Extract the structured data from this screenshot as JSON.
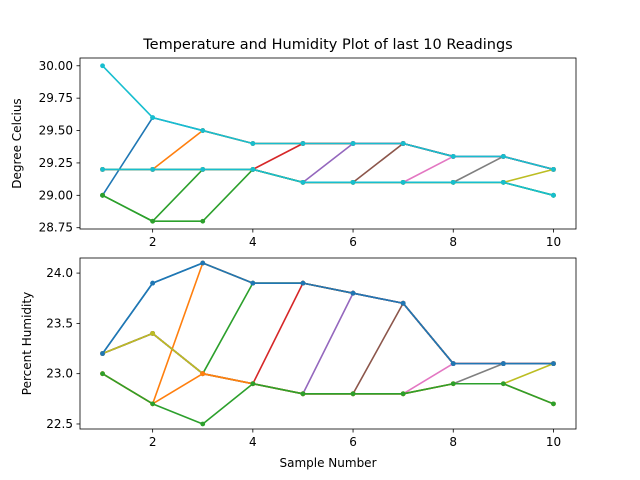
{
  "chart_data": [
    {
      "type": "line",
      "title": "Temperature and Humidity Plot of last 10 Readings",
      "xlabel": "",
      "ylabel": "Degree Celcius",
      "xlim": [
        0.55,
        10.45
      ],
      "ylim": [
        28.74,
        30.06
      ],
      "xticks": [
        2,
        4,
        6,
        8,
        10
      ],
      "yticks": [
        28.75,
        29.0,
        29.25,
        29.5,
        29.75,
        30.0
      ],
      "ytick_labels": [
        "28.75",
        "29.00",
        "29.25",
        "29.50",
        "29.75",
        "30.00"
      ],
      "grid": false,
      "series": [
        {
          "color": "#1f77b4",
          "x": [
            1,
            2,
            3,
            4,
            5,
            6,
            7,
            8,
            9,
            10
          ],
          "values": [
            29.0,
            29.6,
            29.5,
            29.4,
            29.4,
            29.4,
            29.4,
            29.3,
            29.3,
            29.2
          ]
        },
        {
          "color": "#ff7f0e",
          "x": [
            1,
            2,
            3,
            4,
            5,
            6,
            7,
            8,
            9,
            10
          ],
          "values": [
            29.2,
            29.2,
            29.5,
            29.4,
            29.4,
            29.4,
            29.4,
            29.3,
            29.3,
            29.2
          ]
        },
        {
          "color": "#2ca02c",
          "x": [
            1,
            2,
            3,
            4,
            5,
            6,
            7,
            8,
            9,
            10
          ],
          "values": [
            29.0,
            28.8,
            29.2,
            29.2,
            29.1,
            29.1,
            29.1,
            29.1,
            29.1,
            29.0
          ]
        },
        {
          "color": "#d62728",
          "x": [
            1,
            2,
            3,
            4,
            5,
            6,
            7,
            8,
            9,
            10
          ],
          "values": [
            29.2,
            29.2,
            29.2,
            29.2,
            29.4,
            29.4,
            29.4,
            29.3,
            29.3,
            29.2
          ]
        },
        {
          "color": "#9467bd",
          "x": [
            1,
            2,
            3,
            4,
            5,
            6,
            7,
            8,
            9,
            10
          ],
          "values": [
            29.2,
            29.2,
            29.2,
            29.2,
            29.1,
            29.4,
            29.4,
            29.3,
            29.3,
            29.2
          ]
        },
        {
          "color": "#8c564b",
          "x": [
            1,
            2,
            3,
            4,
            5,
            6,
            7,
            8,
            9,
            10
          ],
          "values": [
            29.2,
            29.2,
            29.2,
            29.2,
            29.1,
            29.1,
            29.4,
            29.3,
            29.3,
            29.2
          ]
        },
        {
          "color": "#e377c2",
          "x": [
            1,
            2,
            3,
            4,
            5,
            6,
            7,
            8,
            9,
            10
          ],
          "values": [
            29.2,
            29.2,
            29.2,
            29.2,
            29.1,
            29.1,
            29.1,
            29.3,
            29.3,
            29.2
          ]
        },
        {
          "color": "#7f7f7f",
          "x": [
            1,
            2,
            3,
            4,
            5,
            6,
            7,
            8,
            9,
            10
          ],
          "values": [
            29.2,
            29.2,
            29.2,
            29.2,
            29.1,
            29.1,
            29.1,
            29.1,
            29.3,
            29.2
          ]
        },
        {
          "color": "#bcbd22",
          "x": [
            1,
            2,
            3,
            4,
            5,
            6,
            7,
            8,
            9,
            10
          ],
          "values": [
            29.2,
            29.2,
            29.2,
            29.2,
            29.1,
            29.1,
            29.1,
            29.1,
            29.1,
            29.2
          ]
        },
        {
          "color": "#17becf",
          "x": [
            1,
            2,
            3,
            4,
            5,
            6,
            7,
            8,
            9,
            10
          ],
          "values": [
            30.0,
            29.6,
            29.5,
            29.4,
            29.4,
            29.4,
            29.4,
            29.3,
            29.3,
            29.2
          ]
        },
        {
          "color": "#2ca02c",
          "x": [
            1,
            2,
            3,
            4,
            5,
            6,
            7,
            8,
            9,
            10
          ],
          "values": [
            29.0,
            28.8,
            28.8,
            29.2,
            29.1,
            29.1,
            29.1,
            29.1,
            29.1,
            29.0
          ]
        },
        {
          "color": "#17becf",
          "x": [
            1,
            2,
            3,
            4,
            5,
            6,
            7,
            8,
            9,
            10
          ],
          "values": [
            29.2,
            29.2,
            29.2,
            29.2,
            29.1,
            29.1,
            29.1,
            29.1,
            29.1,
            29.0
          ]
        }
      ]
    },
    {
      "type": "line",
      "title": "",
      "xlabel": "Sample Number",
      "ylabel": "Percent Humidity",
      "xlim": [
        0.55,
        10.45
      ],
      "ylim": [
        22.45,
        24.15
      ],
      "xticks": [
        2,
        4,
        6,
        8,
        10
      ],
      "yticks": [
        22.5,
        23.0,
        23.5,
        24.0
      ],
      "ytick_labels": [
        "22.5",
        "23.0",
        "23.5",
        "24.0"
      ],
      "grid": false,
      "series": [
        {
          "color": "#1f77b4",
          "x": [
            1,
            2,
            3,
            4,
            5,
            6,
            7,
            8,
            9,
            10
          ],
          "values": [
            23.2,
            23.9,
            24.1,
            23.9,
            23.9,
            23.8,
            23.7,
            23.1,
            23.1,
            23.1
          ]
        },
        {
          "color": "#ff7f0e",
          "x": [
            1,
            2,
            3,
            4,
            5,
            6,
            7,
            8,
            9,
            10
          ],
          "values": [
            23.0,
            22.7,
            24.1,
            23.9,
            23.9,
            23.8,
            23.7,
            23.1,
            23.1,
            23.1
          ]
        },
        {
          "color": "#2ca02c",
          "x": [
            1,
            2,
            3,
            4,
            5,
            6,
            7,
            8,
            9,
            10
          ],
          "values": [
            23.2,
            23.4,
            23.0,
            23.9,
            23.9,
            23.8,
            23.7,
            23.1,
            23.1,
            23.1
          ]
        },
        {
          "color": "#d62728",
          "x": [
            1,
            2,
            3,
            4,
            5,
            6,
            7,
            8,
            9,
            10
          ],
          "values": [
            23.2,
            23.4,
            23.0,
            22.9,
            23.9,
            23.8,
            23.7,
            23.1,
            23.1,
            23.1
          ]
        },
        {
          "color": "#9467bd",
          "x": [
            1,
            2,
            3,
            4,
            5,
            6,
            7,
            8,
            9,
            10
          ],
          "values": [
            23.2,
            23.4,
            23.0,
            22.9,
            22.8,
            23.8,
            23.7,
            23.1,
            23.1,
            23.1
          ]
        },
        {
          "color": "#8c564b",
          "x": [
            1,
            2,
            3,
            4,
            5,
            6,
            7,
            8,
            9,
            10
          ],
          "values": [
            23.2,
            23.4,
            23.0,
            22.9,
            22.8,
            22.8,
            23.7,
            23.1,
            23.1,
            23.1
          ]
        },
        {
          "color": "#e377c2",
          "x": [
            1,
            2,
            3,
            4,
            5,
            6,
            7,
            8,
            9,
            10
          ],
          "values": [
            23.2,
            23.4,
            23.0,
            22.9,
            22.8,
            22.8,
            22.8,
            23.1,
            23.1,
            23.1
          ]
        },
        {
          "color": "#7f7f7f",
          "x": [
            1,
            2,
            3,
            4,
            5,
            6,
            7,
            8,
            9,
            10
          ],
          "values": [
            23.2,
            23.4,
            23.0,
            22.9,
            22.8,
            22.8,
            22.8,
            22.9,
            23.1,
            23.1
          ]
        },
        {
          "color": "#bcbd22",
          "x": [
            1,
            2,
            3,
            4,
            5,
            6,
            7,
            8,
            9,
            10
          ],
          "values": [
            23.2,
            23.4,
            23.0,
            22.9,
            22.8,
            22.8,
            22.8,
            22.9,
            22.9,
            23.1
          ]
        },
        {
          "color": "#1f77b4",
          "x": [
            1,
            2,
            3,
            4,
            5,
            6,
            7,
            8,
            9,
            10
          ],
          "values": [
            23.2,
            23.9,
            24.1,
            23.9,
            23.9,
            23.8,
            23.7,
            23.1,
            23.1,
            23.1
          ]
        },
        {
          "color": "#ff7f0e",
          "x": [
            1,
            2,
            3,
            4,
            5,
            6,
            7,
            8,
            9,
            10
          ],
          "values": [
            23.0,
            22.7,
            23.0,
            22.9,
            22.8,
            22.8,
            22.8,
            22.9,
            22.9,
            22.7
          ]
        },
        {
          "color": "#2ca02c",
          "x": [
            1,
            2,
            3,
            4,
            5,
            6,
            7,
            8,
            9,
            10
          ],
          "values": [
            23.0,
            22.7,
            22.5,
            22.9,
            22.8,
            22.8,
            22.8,
            22.9,
            22.9,
            22.7
          ]
        }
      ]
    }
  ]
}
